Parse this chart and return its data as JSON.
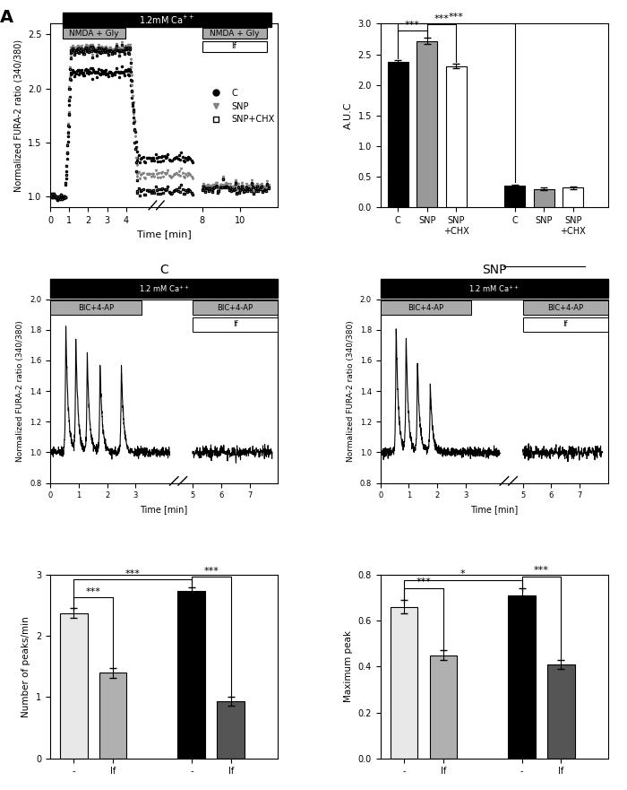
{
  "panel_A_bar": {
    "values": [
      2.37,
      2.72,
      2.31,
      0.35,
      0.3,
      0.32
    ],
    "errors": [
      0.04,
      0.05,
      0.04,
      0.02,
      0.02,
      0.02
    ],
    "colors": [
      "#000000",
      "#999999",
      "#ffffff",
      "#000000",
      "#999999",
      "#ffffff"
    ],
    "ylim": [
      0,
      3.0
    ],
    "yticks": [
      0.0,
      0.5,
      1.0,
      1.5,
      2.0,
      2.5,
      3.0
    ],
    "ylabel": "A.U.C"
  },
  "panel_B_left_bar": {
    "values": [
      2.37,
      1.4,
      2.73,
      0.93
    ],
    "errors": [
      0.08,
      0.08,
      0.06,
      0.07
    ],
    "colors": [
      "#e8e8e8",
      "#b0b0b0",
      "#000000",
      "#555555"
    ],
    "ylim": [
      0,
      3.0
    ],
    "yticks": [
      0,
      1,
      2,
      3
    ],
    "ylabel": "Number of peaks/min"
  },
  "panel_B_right_bar": {
    "values": [
      0.66,
      0.45,
      0.71,
      0.41
    ],
    "errors": [
      0.03,
      0.02,
      0.03,
      0.02
    ],
    "colors": [
      "#e8e8e8",
      "#b0b0b0",
      "#000000",
      "#555555"
    ],
    "ylim": [
      0,
      0.8
    ],
    "yticks": [
      0.0,
      0.2,
      0.4,
      0.6,
      0.8
    ],
    "ylabel": "Maximum peak"
  }
}
